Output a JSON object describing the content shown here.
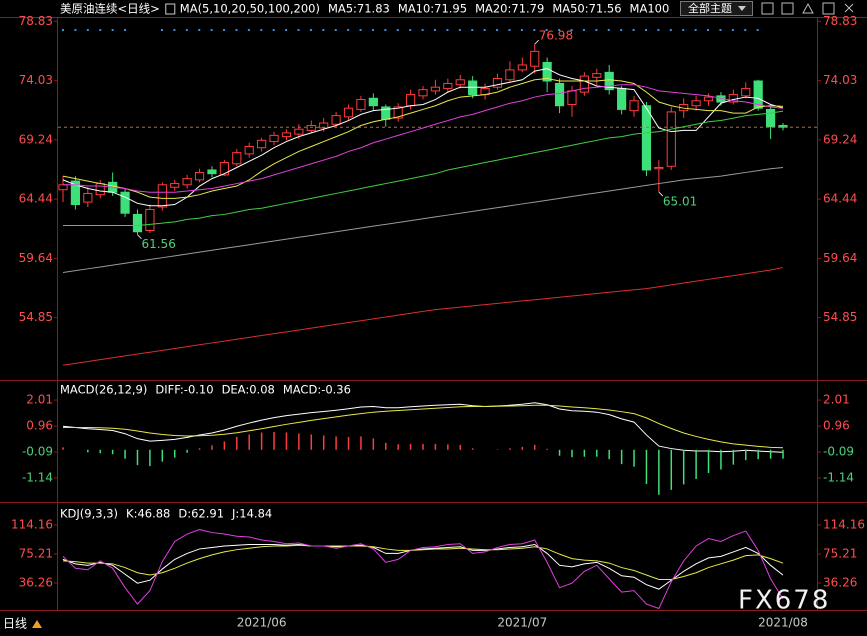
{
  "header": {
    "theme_button": "全部主题"
  },
  "footer": {
    "period": "日线"
  },
  "watermark": "FX678",
  "chart_data": [
    {
      "type": "candlestick",
      "title": "美原油连续<日线>",
      "indicator": "MA(5,10,20,50,100,200)",
      "categories": [
        null,
        null,
        null,
        null,
        null,
        null,
        null,
        null,
        null,
        null,
        null,
        null,
        null,
        null,
        null,
        null,
        "2021/06",
        null,
        null,
        null,
        null,
        null,
        null,
        null,
        null,
        null,
        null,
        null,
        null,
        null,
        null,
        null,
        null,
        null,
        null,
        null,
        null,
        "2021/07",
        null,
        null,
        null,
        null,
        null,
        null,
        null,
        null,
        null,
        null,
        null,
        null,
        null,
        null,
        null,
        null,
        null,
        null,
        null,
        null,
        "2021/08"
      ],
      "open": [
        65.2,
        65.9,
        64.2,
        64.8,
        65.8,
        65.0,
        63.2,
        61.9,
        63.8,
        65.4,
        65.6,
        66.0,
        66.8,
        66.4,
        67.3,
        68.1,
        68.6,
        69.1,
        69.5,
        69.7,
        70.0,
        70.2,
        70.5,
        71.1,
        71.7,
        72.6,
        71.9,
        71.0,
        72.0,
        72.8,
        73.2,
        73.4,
        73.7,
        74.0,
        72.9,
        73.5,
        74.1,
        74.9,
        75.2,
        75.5,
        73.8,
        72.1,
        73.1,
        74.3,
        74.7,
        73.4,
        71.6,
        72.0,
        66.9,
        67.1,
        71.6,
        72.0,
        72.4,
        72.8,
        72.3,
        72.8,
        74.0,
        71.7,
        70.4
      ],
      "high": [
        66.3,
        66.3,
        65.4,
        66.0,
        66.6,
        65.3,
        63.6,
        64.0,
        65.8,
        66.0,
        66.4,
        66.9,
        67.1,
        67.6,
        68.5,
        69.0,
        69.4,
        69.9,
        70.1,
        70.5,
        70.8,
        71.0,
        71.5,
        72.1,
        72.8,
        73.0,
        72.1,
        72.2,
        73.3,
        73.6,
        74.1,
        74.2,
        74.5,
        74.4,
        73.8,
        74.6,
        75.6,
        75.9,
        76.98,
        75.9,
        74.2,
        73.6,
        74.7,
        75.0,
        75.3,
        73.6,
        72.8,
        72.3,
        67.6,
        71.9,
        72.6,
        72.8,
        73.0,
        73.1,
        73.3,
        73.9,
        74.1,
        71.9,
        70.6
      ],
      "low": [
        64.2,
        63.6,
        63.8,
        64.5,
        64.7,
        63.0,
        61.56,
        61.7,
        63.5,
        65.1,
        65.3,
        65.8,
        66.2,
        66.3,
        67.1,
        67.8,
        68.3,
        68.8,
        69.2,
        69.3,
        69.8,
        69.9,
        70.3,
        70.8,
        71.5,
        71.6,
        70.3,
        70.7,
        71.7,
        72.5,
        72.9,
        73.1,
        73.4,
        72.6,
        72.5,
        73.3,
        73.9,
        74.7,
        74.6,
        73.1,
        71.4,
        71.1,
        72.8,
        73.7,
        72.9,
        71.3,
        71.1,
        66.3,
        65.01,
        66.8,
        71.0,
        71.6,
        72.0,
        72.0,
        72.1,
        72.6,
        71.6,
        69.3,
        70.0
      ],
      "close": [
        65.6,
        64.0,
        64.9,
        65.7,
        65.0,
        63.3,
        61.8,
        63.6,
        65.6,
        65.7,
        66.1,
        66.6,
        66.5,
        67.4,
        68.2,
        68.7,
        69.2,
        69.6,
        69.8,
        70.1,
        70.4,
        70.6,
        71.2,
        71.8,
        72.5,
        72.0,
        70.9,
        71.9,
        72.9,
        73.3,
        73.5,
        73.8,
        74.1,
        72.9,
        73.4,
        74.2,
        74.9,
        75.3,
        76.4,
        74.0,
        72.0,
        73.2,
        74.4,
        74.6,
        73.3,
        71.7,
        72.4,
        66.8,
        67.0,
        71.5,
        72.1,
        72.4,
        72.7,
        72.3,
        72.9,
        73.4,
        71.8,
        70.3,
        70.26
      ],
      "up_color": "#ff3b3b",
      "down_color": "#3ee07a",
      "series": [
        {
          "name": "MA5:71.83",
          "color": "#ffffff",
          "values": [
            66.0,
            65.6,
            65.3,
            65.1,
            65.0,
            64.6,
            64.1,
            63.9,
            63.9,
            64.0,
            64.6,
            65.5,
            66.1,
            66.5,
            67.0,
            67.5,
            68.0,
            68.6,
            69.1,
            69.5,
            69.8,
            70.1,
            70.4,
            70.8,
            71.3,
            71.6,
            71.7,
            71.8,
            72.0,
            72.1,
            72.5,
            73.1,
            73.5,
            73.5,
            73.5,
            73.7,
            73.9,
            74.1,
            74.8,
            75.0,
            74.5,
            74.2,
            74.0,
            73.6,
            73.5,
            73.4,
            73.3,
            71.8,
            70.2,
            69.9,
            70.0,
            70.0,
            71.1,
            72.2,
            72.5,
            72.7,
            72.6,
            72.1,
            71.83
          ]
        },
        {
          "name": "MA10:71.95",
          "color": "#e8e84a",
          "values": [
            66.3,
            66.1,
            65.9,
            65.7,
            65.5,
            65.3,
            65.0,
            64.6,
            64.5,
            64.5,
            64.6,
            64.8,
            65.1,
            65.3,
            65.5,
            66.0,
            66.7,
            67.3,
            67.8,
            68.3,
            68.7,
            69.1,
            69.5,
            69.9,
            70.4,
            70.7,
            70.9,
            71.1,
            71.4,
            71.7,
            72.0,
            72.4,
            72.7,
            72.8,
            72.9,
            73.1,
            73.5,
            73.8,
            74.1,
            74.2,
            74.0,
            74.0,
            74.0,
            74.0,
            74.1,
            74.0,
            73.8,
            73.1,
            72.3,
            72.0,
            71.8,
            71.7,
            71.6,
            71.6,
            71.4,
            71.4,
            71.9,
            72.0,
            71.95
          ]
        },
        {
          "name": "MA20:71.79",
          "color": "#e040e0",
          "values": [
            65.6,
            65.6,
            65.5,
            65.5,
            65.4,
            65.3,
            65.1,
            65.0,
            65.0,
            65.0,
            65.1,
            65.2,
            65.3,
            65.5,
            65.7,
            65.9,
            66.1,
            66.4,
            66.7,
            67.0,
            67.3,
            67.6,
            67.9,
            68.3,
            68.6,
            69.0,
            69.3,
            69.6,
            69.9,
            70.2,
            70.5,
            70.8,
            71.1,
            71.3,
            71.6,
            71.9,
            72.2,
            72.4,
            72.7,
            72.9,
            73.0,
            73.2,
            73.4,
            73.5,
            73.6,
            73.7,
            73.7,
            73.5,
            73.2,
            73.1,
            73.0,
            72.9,
            72.8,
            72.6,
            72.4,
            72.3,
            72.1,
            71.9,
            71.79
          ]
        },
        {
          "name": "MA50:71.56",
          "color": "#40d040",
          "values": [
            62.3,
            62.3,
            62.3,
            62.3,
            62.3,
            62.3,
            62.3,
            62.4,
            62.5,
            62.6,
            62.8,
            62.9,
            63.1,
            63.2,
            63.4,
            63.6,
            63.7,
            63.9,
            64.1,
            64.3,
            64.5,
            64.7,
            64.9,
            65.1,
            65.3,
            65.5,
            65.7,
            65.9,
            66.1,
            66.3,
            66.5,
            66.8,
            67.0,
            67.2,
            67.4,
            67.6,
            67.8,
            68.0,
            68.2,
            68.4,
            68.6,
            68.8,
            69.0,
            69.2,
            69.4,
            69.5,
            69.7,
            69.8,
            69.9,
            70.1,
            70.3,
            70.5,
            70.7,
            70.8,
            71.0,
            71.2,
            71.3,
            71.4,
            71.56
          ]
        },
        {
          "name": "MA100",
          "color": "#9a9a9a",
          "values": [
            58.5,
            58.65,
            58.8,
            58.95,
            59.1,
            59.25,
            59.4,
            59.55,
            59.7,
            59.85,
            60.0,
            60.15,
            60.3,
            60.45,
            60.6,
            60.75,
            60.9,
            61.05,
            61.2,
            61.35,
            61.5,
            61.65,
            61.8,
            61.95,
            62.1,
            62.25,
            62.4,
            62.55,
            62.7,
            62.85,
            63.0,
            63.15,
            63.3,
            63.45,
            63.6,
            63.75,
            63.9,
            64.05,
            64.2,
            64.35,
            64.5,
            64.65,
            64.8,
            64.95,
            65.1,
            65.25,
            65.4,
            65.55,
            65.7,
            65.85,
            66.0,
            66.1,
            66.2,
            66.3,
            66.45,
            66.6,
            66.75,
            66.9,
            67.0
          ]
        },
        {
          "color": "#d83030",
          "values": [
            51.0,
            51.15,
            51.3,
            51.45,
            51.6,
            51.75,
            51.9,
            52.05,
            52.2,
            52.35,
            52.5,
            52.65,
            52.8,
            52.95,
            53.1,
            53.25,
            53.4,
            53.55,
            53.7,
            53.85,
            54.0,
            54.15,
            54.3,
            54.45,
            54.6,
            54.75,
            54.9,
            55.05,
            55.2,
            55.35,
            55.5,
            55.6,
            55.7,
            55.8,
            55.9,
            56.0,
            56.1,
            56.2,
            56.3,
            56.4,
            56.5,
            56.6,
            56.7,
            56.8,
            56.9,
            57.0,
            57.1,
            57.2,
            57.35,
            57.5,
            57.65,
            57.8,
            57.95,
            58.1,
            58.25,
            58.4,
            58.55,
            58.7,
            58.9
          ]
        }
      ],
      "ylim": [
        49.8,
        79.1
      ],
      "yticks": [
        78.83,
        74.03,
        69.24,
        64.44,
        59.64,
        54.85
      ]
    },
    {
      "type": "line",
      "title": "MACD(26,12,9)",
      "up_color": "#ff3b3b",
      "down_color": "#3ee07a",
      "series": [
        {
          "name": "DIFF:-0.10",
          "color": "#ffffff",
          "values": [
            0.95,
            0.9,
            0.85,
            0.82,
            0.78,
            0.65,
            0.45,
            0.35,
            0.38,
            0.42,
            0.5,
            0.6,
            0.68,
            0.8,
            0.95,
            1.08,
            1.2,
            1.3,
            1.38,
            1.44,
            1.5,
            1.55,
            1.6,
            1.66,
            1.73,
            1.75,
            1.7,
            1.7,
            1.74,
            1.77,
            1.8,
            1.82,
            1.84,
            1.78,
            1.75,
            1.77,
            1.8,
            1.84,
            1.9,
            1.82,
            1.65,
            1.58,
            1.56,
            1.52,
            1.42,
            1.25,
            1.12,
            0.6,
            0.15,
            0.05,
            -0.02,
            -0.05,
            -0.05,
            -0.08,
            -0.06,
            -0.02,
            -0.05,
            -0.08,
            -0.1
          ]
        },
        {
          "name": "DEA:0.08",
          "color": "#e8e84a",
          "values": [
            0.9,
            0.9,
            0.9,
            0.89,
            0.87,
            0.83,
            0.76,
            0.68,
            0.62,
            0.58,
            0.56,
            0.57,
            0.59,
            0.63,
            0.69,
            0.77,
            0.85,
            0.94,
            1.03,
            1.11,
            1.19,
            1.26,
            1.33,
            1.4,
            1.46,
            1.52,
            1.56,
            1.59,
            1.62,
            1.65,
            1.68,
            1.71,
            1.74,
            1.75,
            1.75,
            1.76,
            1.77,
            1.78,
            1.8,
            1.8,
            1.77,
            1.73,
            1.7,
            1.66,
            1.61,
            1.54,
            1.46,
            1.29,
            1.06,
            0.86,
            0.68,
            0.54,
            0.42,
            0.32,
            0.24,
            0.19,
            0.14,
            0.1,
            0.08
          ]
        },
        {
          "name": "MACD:-0.36",
          "color": "#e040e0",
          "style": "bar",
          "values": [
            0.1,
            0,
            -0.1,
            -0.14,
            -0.18,
            -0.36,
            -0.62,
            -0.66,
            -0.48,
            -0.32,
            -0.12,
            0.06,
            0.18,
            0.34,
            0.52,
            0.62,
            0.7,
            0.72,
            0.7,
            0.66,
            0.62,
            0.58,
            0.54,
            0.52,
            0.54,
            0.46,
            0.28,
            0.22,
            0.24,
            0.24,
            0.24,
            0.22,
            0.2,
            0.06,
            0,
            0.02,
            0.06,
            0.12,
            0.2,
            0.04,
            -0.24,
            -0.3,
            -0.28,
            -0.28,
            -0.38,
            -0.58,
            -0.68,
            -1.38,
            -1.82,
            -1.62,
            -1.4,
            -1.18,
            -0.94,
            -0.8,
            -0.6,
            -0.42,
            -0.38,
            -0.36,
            -0.36
          ]
        }
      ],
      "ylim": [
        -2.11,
        2.74
      ],
      "yticks": [
        2.01,
        0.96,
        -0.09,
        -1.14
      ]
    },
    {
      "type": "line",
      "title": "KDJ(9,3,3)",
      "series": [
        {
          "name": "K:46.88",
          "color": "#ffffff",
          "values": [
            68,
            62,
            60,
            64,
            60,
            48,
            36,
            40,
            55,
            68,
            76,
            82,
            84,
            86,
            87,
            88,
            88,
            88,
            87,
            88,
            86,
            86,
            85,
            86,
            87,
            84,
            76,
            76,
            80,
            82,
            83,
            84,
            85,
            80,
            80,
            82,
            84,
            85,
            88,
            76,
            60,
            58,
            62,
            64,
            56,
            46,
            44,
            34,
            28,
            40,
            52,
            62,
            70,
            72,
            78,
            84,
            76,
            60,
            46.88
          ]
        },
        {
          "name": "D:62.91",
          "color": "#e8e84a",
          "values": [
            66,
            65,
            63,
            63,
            62,
            57,
            50,
            47,
            50,
            56,
            63,
            69,
            74,
            78,
            81,
            83,
            85,
            86,
            86,
            87,
            86,
            86,
            86,
            86,
            86,
            85,
            82,
            80,
            80,
            81,
            82,
            82,
            83,
            82,
            81,
            81,
            82,
            83,
            85,
            82,
            75,
            69,
            67,
            66,
            63,
            57,
            53,
            47,
            41,
            41,
            45,
            50,
            57,
            62,
            67,
            73,
            74,
            69,
            62.91
          ]
        },
        {
          "name": "J:14.84",
          "color": "#e040e0",
          "values": [
            72,
            56,
            54,
            66,
            56,
            30,
            8,
            26,
            65,
            92,
            102,
            108,
            104,
            102,
            99,
            98,
            94,
            92,
            89,
            90,
            86,
            86,
            83,
            86,
            89,
            82,
            64,
            68,
            80,
            84,
            85,
            88,
            89,
            76,
            78,
            84,
            88,
            89,
            94,
            64,
            30,
            36,
            52,
            60,
            42,
            24,
            26,
            8,
            2,
            38,
            66,
            86,
            96,
            92,
            100,
            106,
            80,
            42,
            14.84
          ]
        }
      ],
      "ylim": [
        0,
        143.7
      ],
      "yticks": [
        114.16,
        75.21,
        36.26
      ]
    }
  ]
}
